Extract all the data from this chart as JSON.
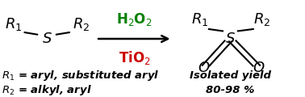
{
  "bg_color": "#ffffff",
  "arrow_color": "#000000",
  "h2o2_color": "#008000",
  "tio2_color": "#cc0000",
  "text_color": "#000000",
  "h2o2_text": "H$_2$O$_2$",
  "tio2_text": "TiO$_2$",
  "footnote1": "$R_1$ = aryl, substituted aryl",
  "footnote2": "$R_2$ = alkyl, aryl",
  "footnote3": "Isolated yield",
  "footnote4": "80-98 %",
  "figsize": [
    3.78,
    1.2
  ],
  "dpi": 100,
  "font_size_main": 13,
  "font_size_reagent": 12,
  "font_size_footnote": 9.5
}
